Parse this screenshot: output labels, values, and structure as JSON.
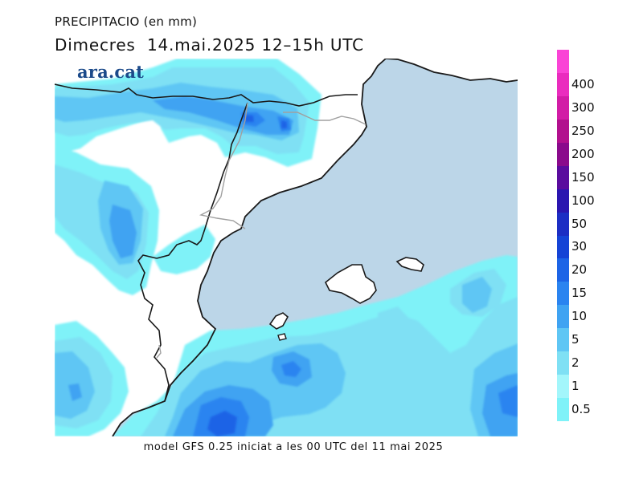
{
  "title": {
    "variable": "PRECIPITACIO (en mm)",
    "day": "Dimecres",
    "date": "14.mai.2025",
    "period": "12–15h UTC"
  },
  "logo": "ara.cat",
  "caption": "model GFS 0.25 iniciat a les 00 UTC del 11 mai 2025",
  "legend": {
    "levels": [
      {
        "label": "0.5",
        "color": "#7ff2f8"
      },
      {
        "label": "1",
        "color": "#a3f6fb"
      },
      {
        "label": "2",
        "color": "#7fe0f4"
      },
      {
        "label": "5",
        "color": "#5fc6f4"
      },
      {
        "label": "10",
        "color": "#3fa3f2"
      },
      {
        "label": "15",
        "color": "#2a84f0"
      },
      {
        "label": "20",
        "color": "#1c64e6"
      },
      {
        "label": "30",
        "color": "#1544d6"
      },
      {
        "label": "50",
        "color": "#1c2ec4"
      },
      {
        "label": "100",
        "color": "#2a16b0"
      },
      {
        "label": "150",
        "color": "#5a0c9e"
      },
      {
        "label": "200",
        "color": "#8a0a8c"
      },
      {
        "label": "250",
        "color": "#b2108e"
      },
      {
        "label": "300",
        "color": "#d21ca6"
      },
      {
        "label": "400",
        "color": "#ea2cbe"
      },
      {
        "label": "",
        "color": "#fa44d6"
      }
    ]
  },
  "colors": {
    "sea": "#bcd6e8",
    "land": "#ffffff",
    "coast": "#1a1a1a",
    "border": "#a0a0a0"
  }
}
